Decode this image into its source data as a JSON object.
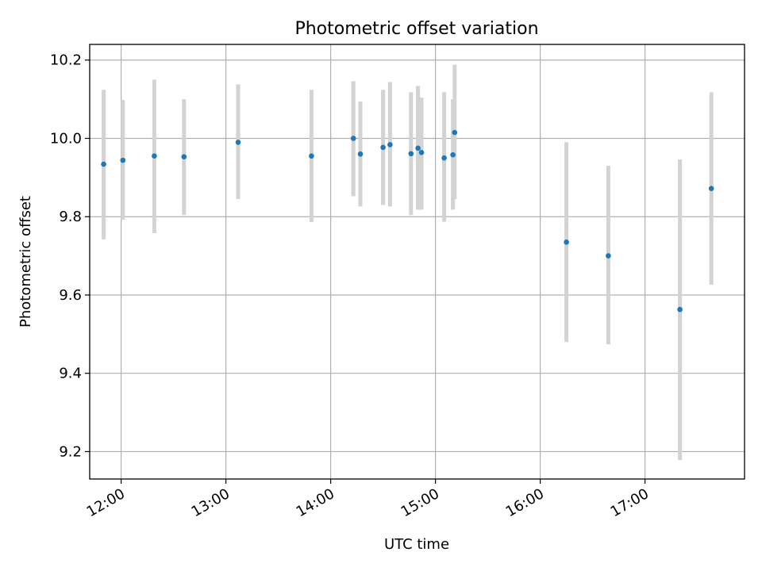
{
  "chart_data": {
    "type": "scatter",
    "title": "Photometric offset variation",
    "xlabel": "UTC time",
    "ylabel": "Photometric offset",
    "xlim": [
      "11:42",
      "17:57"
    ],
    "ylim": [
      9.13,
      10.24
    ],
    "xticks": [
      "12:00",
      "13:00",
      "14:00",
      "15:00",
      "16:00",
      "17:00"
    ],
    "yticks": [
      "9.2",
      "9.4",
      "9.6",
      "9.8",
      "10.0",
      "10.2"
    ],
    "grid": true,
    "series": [
      {
        "x": [
          "11:50",
          "12:01",
          "12:19",
          "12:36",
          "13:07",
          "13:49",
          "14:13",
          "14:17",
          "14:30",
          "14:34",
          "14:46",
          "14:50",
          "14:52",
          "15:05",
          "15:10",
          "15:11",
          "16:15",
          "16:39",
          "17:20",
          "17:38"
        ],
        "y": [
          9.934,
          9.944,
          9.955,
          9.953,
          9.99,
          9.955,
          10.0,
          9.96,
          9.977,
          9.984,
          9.961,
          9.975,
          9.964,
          9.95,
          9.958,
          10.015,
          9.735,
          9.7,
          9.563,
          9.872
        ],
        "err_low": [
          9.742,
          9.792,
          9.758,
          9.804,
          9.845,
          9.786,
          9.852,
          9.826,
          9.83,
          9.826,
          9.804,
          9.818,
          9.818,
          9.787,
          9.818,
          9.845,
          9.48,
          9.474,
          9.178,
          9.626
        ],
        "err_high": [
          10.124,
          10.098,
          10.15,
          10.1,
          10.138,
          10.124,
          10.146,
          10.094,
          10.124,
          10.144,
          10.118,
          10.134,
          10.104,
          10.118,
          10.1,
          10.188,
          9.99,
          9.93,
          9.946,
          10.118
        ]
      }
    ],
    "colors": {
      "point": "#1f77b4",
      "errorbar": "#d3d3d3",
      "grid": "#b0b0b0"
    }
  }
}
